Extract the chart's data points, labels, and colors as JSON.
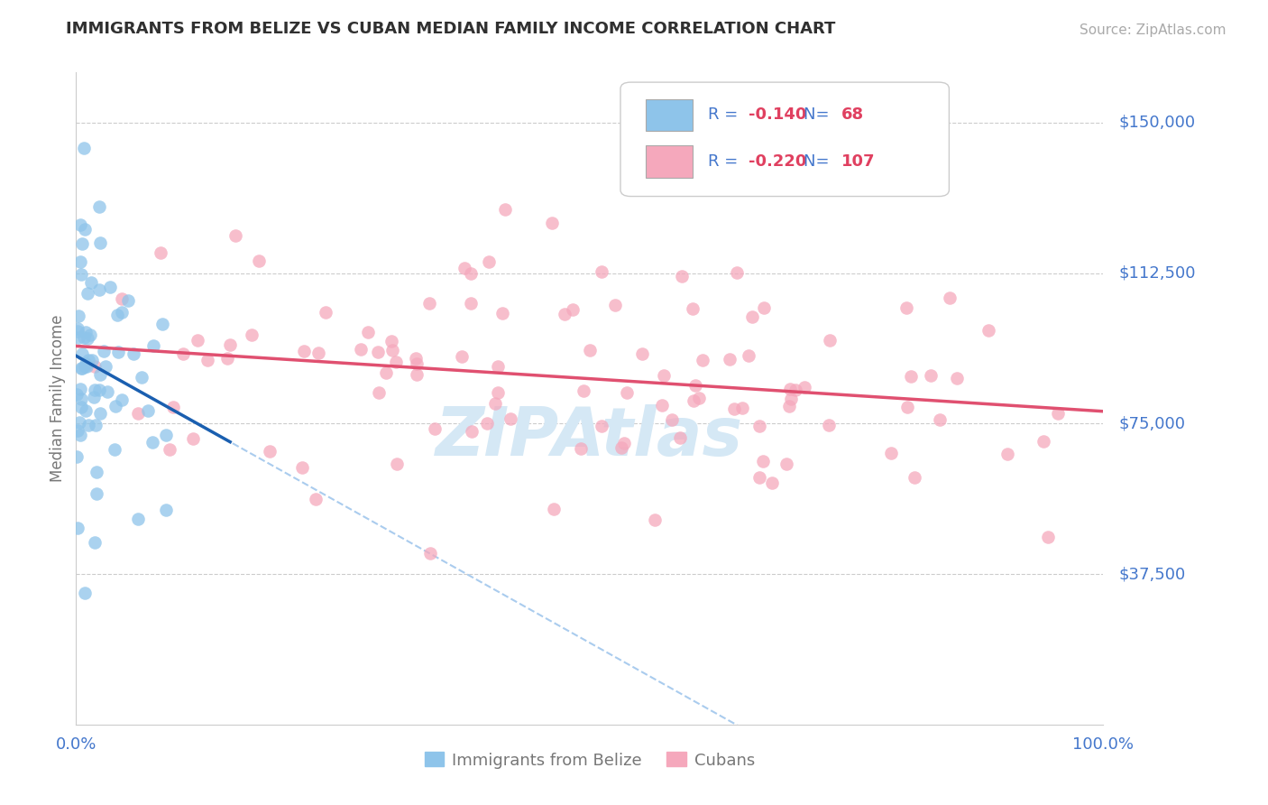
{
  "title": "IMMIGRANTS FROM BELIZE VS CUBAN MEDIAN FAMILY INCOME CORRELATION CHART",
  "source_text": "Source: ZipAtlas.com",
  "ylabel": "Median Family Income",
  "xlim": [
    0.0,
    100.0
  ],
  "ylim": [
    0,
    162500
  ],
  "ytick_vals": [
    37500,
    75000,
    112500,
    150000
  ],
  "ytick_labels": [
    "$37,500",
    "$75,000",
    "$112,500",
    "$150,000"
  ],
  "xtick_vals": [
    0,
    100
  ],
  "xtick_labels": [
    "0.0%",
    "100.0%"
  ],
  "belize_R": -0.14,
  "belize_N": 68,
  "cuban_R": -0.22,
  "cuban_N": 107,
  "belize_color": "#8ec4ea",
  "cuban_color": "#f5a8bc",
  "belize_line_color": "#1a5fb0",
  "cuban_line_color": "#e05070",
  "belize_dash_color": "#aaccee",
  "grid_color": "#cccccc",
  "title_color": "#303030",
  "axis_label_color": "#777777",
  "tick_label_color": "#4477cc",
  "source_color": "#aaaaaa",
  "watermark_color": "#d5e8f5",
  "legend_text_color": "#4477cc",
  "legend_r_color": "#e04060"
}
